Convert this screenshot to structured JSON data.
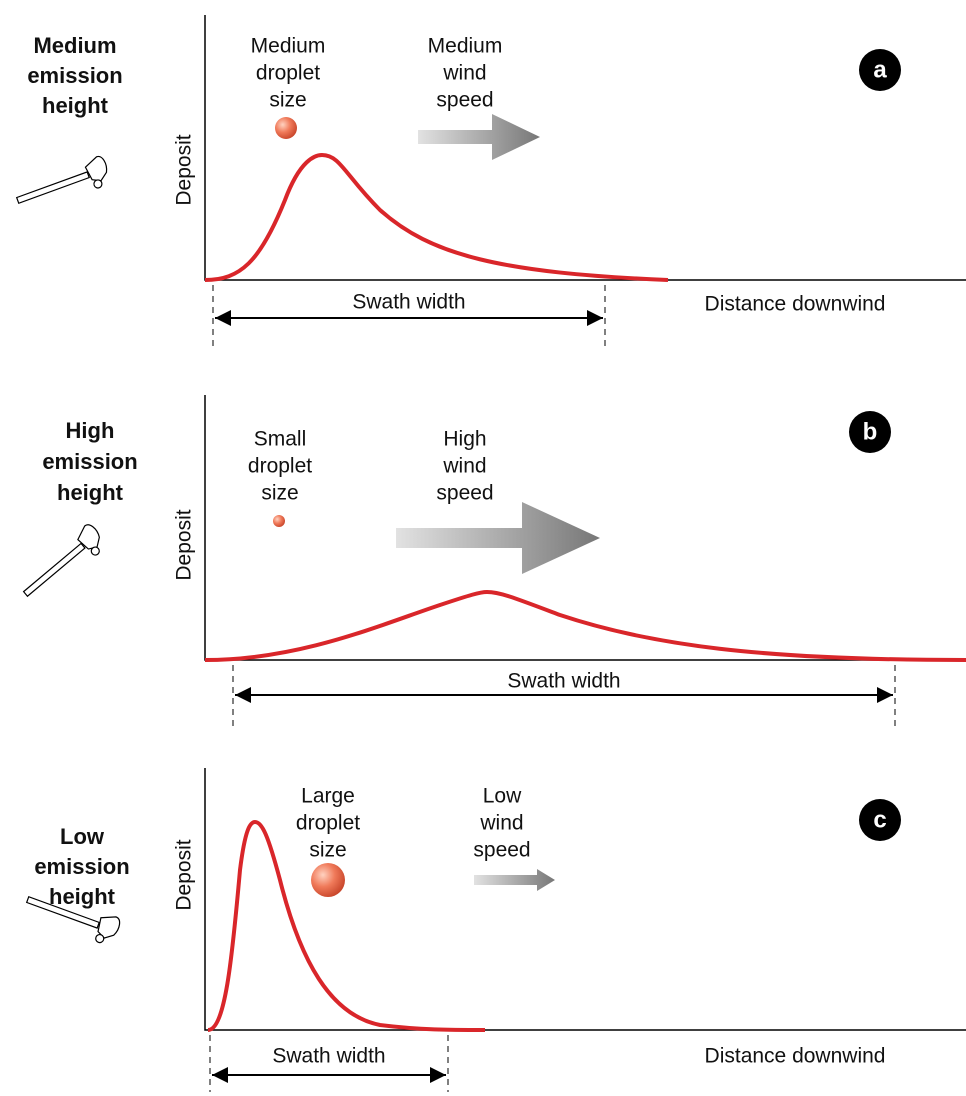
{
  "panels": [
    {
      "letter": "a",
      "emission": [
        "Medium",
        "emission",
        "height"
      ],
      "droplet": [
        "Medium",
        "droplet",
        "size"
      ],
      "wind": [
        "Medium",
        "wind",
        "speed"
      ],
      "y_label": "Deposit",
      "swath": "Swath width",
      "x_label": "Distance downwind"
    },
    {
      "letter": "b",
      "emission": [
        "High",
        "emission",
        "height"
      ],
      "droplet": [
        "Small",
        "droplet",
        "size"
      ],
      "wind": [
        "High",
        "wind",
        "speed"
      ],
      "y_label": "Deposit",
      "swath": "Swath width"
    },
    {
      "letter": "c",
      "emission": [
        "Low",
        "emission",
        "height"
      ],
      "droplet": [
        "Large",
        "droplet",
        "size"
      ],
      "wind": [
        "Low",
        "wind",
        "speed"
      ],
      "y_label": "Deposit",
      "swath": "Swath width",
      "x_label": "Distance downwind"
    }
  ]
}
